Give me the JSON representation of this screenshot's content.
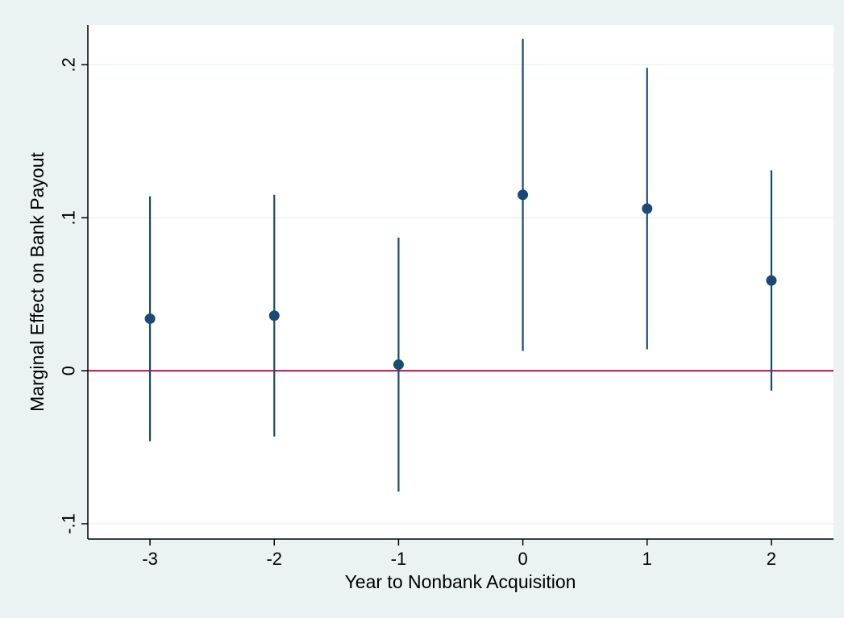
{
  "chart_data": {
    "type": "scatter",
    "subtype": "coefficient-plot-with-confidence-intervals",
    "title": "",
    "xlabel": "Year to Nonbank Acquisition",
    "ylabel": "Marginal Effect on Bank Payout",
    "x_ticks": [
      "-3",
      "-2",
      "-1",
      "0",
      "1",
      "2"
    ],
    "x_tick_values": [
      -3,
      -2,
      -1,
      0,
      1,
      2
    ],
    "y_ticks": [
      "-.1",
      "0",
      ".1",
      ".2"
    ],
    "y_tick_values": [
      -0.1,
      0,
      0.1,
      0.2
    ],
    "xlim": [
      -3.5,
      2.5
    ],
    "ylim": [
      -0.11,
      0.226
    ],
    "grid": "horizontal",
    "reference_line": {
      "y": 0,
      "color": "#c0134a"
    },
    "points": [
      {
        "x": -3,
        "estimate": 0.034,
        "ci_low": -0.046,
        "ci_high": 0.114
      },
      {
        "x": -2,
        "estimate": 0.036,
        "ci_low": -0.043,
        "ci_high": 0.115
      },
      {
        "x": -1,
        "estimate": 0.004,
        "ci_low": -0.079,
        "ci_high": 0.087
      },
      {
        "x": 0,
        "estimate": 0.115,
        "ci_low": 0.013,
        "ci_high": 0.217
      },
      {
        "x": 1,
        "estimate": 0.106,
        "ci_low": 0.014,
        "ci_high": 0.198
      },
      {
        "x": 2,
        "estimate": 0.059,
        "ci_low": -0.013,
        "ci_high": 0.131
      }
    ],
    "colors": {
      "background": "#eaf2f3",
      "plot_area": "#ffffff",
      "marker": "#1a4a73",
      "ci_line": "#1a4a73",
      "reference_line": "#c0134a",
      "grid": "#eaf2f3"
    }
  }
}
